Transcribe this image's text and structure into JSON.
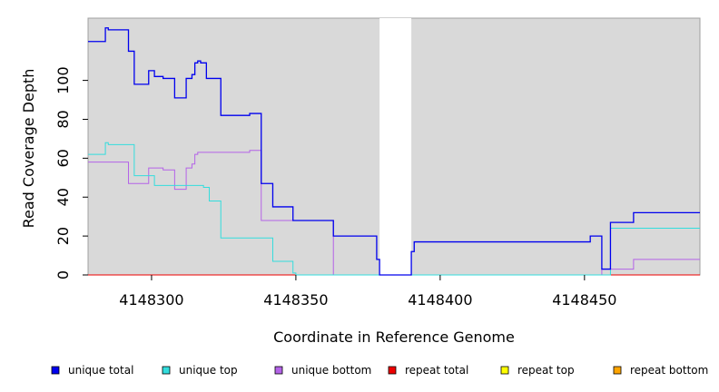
{
  "chart_data": {
    "type": "line",
    "style": "step",
    "title": "",
    "xlabel": "Coordinate in Reference Genome",
    "ylabel": "Read Coverage Depth",
    "xlim": [
      4148278,
      4148490
    ],
    "ylim": [
      0,
      132
    ],
    "x_ticks": [
      4148300,
      4148350,
      4148400,
      4148450
    ],
    "x_tick_labels": [
      "4148300",
      "4148350",
      "4148400",
      "4148450"
    ],
    "y_ticks": [
      0,
      20,
      40,
      60,
      80,
      100
    ],
    "y_tick_labels": [
      "0",
      "20",
      "40",
      "60",
      "80",
      "100"
    ],
    "grid": false,
    "background_color": "#d9d9d9",
    "gap_region": {
      "x": [
        4148379,
        4148390
      ],
      "color": "#ffffff"
    },
    "legend_position": "bottom",
    "series": [
      {
        "name": "unique total",
        "color": "#0000ee",
        "x": [
          4148278,
          4148284,
          4148285,
          4148292,
          4148294,
          4148299,
          4148301,
          4148304,
          4148308,
          4148312,
          4148314,
          4148315,
          4148316,
          4148317,
          4148319,
          4148324,
          4148334,
          4148338,
          4148342,
          4148349,
          4148356,
          4148363,
          4148378,
          4148379,
          4148388,
          4148390,
          4148391,
          4148452,
          4148456,
          4148459,
          4148467,
          4148490
        ],
        "y": [
          120,
          127,
          126,
          115,
          98,
          105,
          102,
          101,
          91,
          101,
          103,
          109,
          110,
          109,
          101,
          82,
          83,
          47,
          35,
          28,
          28,
          20,
          8,
          0,
          0,
          12,
          17,
          20,
          3,
          27,
          32,
          32
        ]
      },
      {
        "name": "unique top",
        "color": "#33dddd",
        "x": [
          4148278,
          4148284,
          4148285,
          4148292,
          4148294,
          4148299,
          4148301,
          4148304,
          4148308,
          4148312,
          4148316,
          4148318,
          4148320,
          4148324,
          4148342,
          4148349,
          4148350,
          4148378,
          4148390,
          4148452,
          4148456,
          4148459,
          4148467,
          4148490
        ],
        "y": [
          62,
          68,
          67,
          67,
          51,
          51,
          46,
          46,
          46,
          46,
          46,
          45,
          38,
          19,
          7,
          1,
          0,
          0,
          0,
          0,
          0,
          24,
          24,
          24
        ]
      },
      {
        "name": "unique bottom",
        "color": "#b463e8",
        "x": [
          4148278,
          4148292,
          4148299,
          4148304,
          4148308,
          4148312,
          4148314,
          4148315,
          4148316,
          4148324,
          4148334,
          4148338,
          4148342,
          4148349,
          4148363,
          4148378,
          4148390,
          4148452,
          4148456,
          4148459,
          4148467,
          4148490
        ],
        "y": [
          58,
          47,
          55,
          54,
          44,
          55,
          57,
          62,
          63,
          63,
          64,
          28,
          28,
          28,
          0,
          0,
          0,
          0,
          3,
          3,
          8,
          8
        ]
      },
      {
        "name": "repeat total",
        "color": "#ee0000",
        "x": [
          4148278,
          4148490
        ],
        "y": [
          0,
          0
        ]
      },
      {
        "name": "repeat top",
        "color": "#ffff00",
        "x": [
          4148278,
          4148490
        ],
        "y": [
          0,
          0
        ]
      },
      {
        "name": "repeat bottom",
        "color": "#ffa500",
        "x": [
          4148278,
          4148490
        ],
        "y": [
          0,
          0
        ]
      }
    ]
  }
}
